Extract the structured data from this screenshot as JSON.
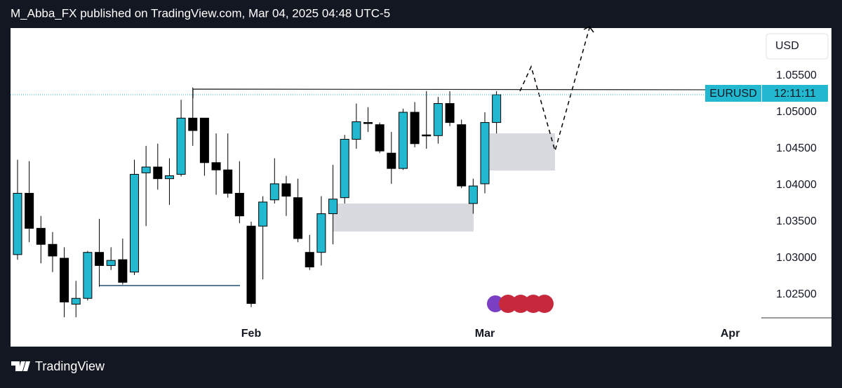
{
  "header": {
    "title": "M_Abba_FX published on TradingView.com, Mar 04, 2025 04:48 UTC-5"
  },
  "footer": {
    "brand": "TradingView"
  },
  "chart_data": {
    "type": "candlestick",
    "currency": "USD",
    "symbol": "EURUSD",
    "countdown": "12:11:11",
    "up_color": "#22b8d0",
    "down_color": "#000000",
    "categories": [
      null,
      null,
      null,
      null,
      null,
      null,
      null,
      null,
      null,
      null,
      null,
      null,
      null,
      null,
      null,
      null,
      null,
      null,
      null,
      null,
      null,
      null,
      null,
      null,
      null,
      null,
      null,
      null,
      null,
      null,
      null,
      null,
      null,
      null,
      null,
      null,
      null,
      null,
      null,
      null,
      null,
      null
    ],
    "open": [
      1.0305,
      1.0389,
      1.0341,
      1.0319,
      1.03,
      1.0237,
      1.0245,
      1.0308,
      1.029,
      1.0298,
      1.0281,
      1.0417,
      1.0425,
      1.0409,
      1.0415,
      1.0492,
      1.0492,
      1.0431,
      1.0421,
      1.0389,
      1.0344,
      1.0344,
      1.038,
      1.0402,
      1.0383,
      1.0308,
      1.0308,
      1.0361,
      1.0383,
      1.0463,
      1.0486,
      1.0483,
      1.0444,
      1.0423,
      1.05,
      1.0469,
      1.0468,
      1.0512,
      1.0483,
      1.0375,
      1.0402,
      1.0486
    ],
    "high": [
      1.0435,
      1.0433,
      1.0358,
      1.0336,
      1.0315,
      1.0269,
      1.031,
      1.0354,
      1.0315,
      1.0327,
      1.0435,
      1.0454,
      1.0457,
      1.0437,
      1.0517,
      1.0534,
      1.0492,
      1.0471,
      1.0471,
      1.0433,
      1.035,
      1.0385,
      1.0437,
      1.0413,
      1.0409,
      1.0332,
      1.0385,
      1.0428,
      1.0469,
      1.0512,
      1.0507,
      1.0486,
      1.0473,
      1.0505,
      1.0514,
      1.0529,
      1.0521,
      1.0529,
      1.049,
      1.0409,
      1.05,
      1.0529
    ],
    "low": [
      1.0298,
      1.0322,
      1.0293,
      1.0281,
      1.0219,
      1.0219,
      1.0242,
      1.0261,
      1.0284,
      1.0264,
      1.0277,
      1.0344,
      1.0394,
      1.0373,
      1.0412,
      1.0454,
      1.0413,
      1.0387,
      1.0383,
      1.0348,
      1.0233,
      1.0271,
      1.0375,
      1.0358,
      1.0322,
      1.0284,
      1.029,
      1.0319,
      1.0375,
      1.045,
      1.0473,
      1.0444,
      1.0402,
      1.0421,
      1.0452,
      1.045,
      1.0457,
      1.0481,
      1.0396,
      1.0361,
      1.0389,
      1.0471
    ],
    "close": [
      1.0389,
      1.0341,
      1.0319,
      1.0303,
      1.024,
      1.0245,
      1.0308,
      1.029,
      1.0297,
      1.0267,
      1.0415,
      1.0425,
      1.0409,
      1.0413,
      1.0492,
      1.0475,
      1.0431,
      1.0421,
      1.0389,
      1.0358,
      1.0238,
      1.0377,
      1.0402,
      1.0385,
      1.0327,
      1.0288,
      1.0361,
      1.0381,
      1.0463,
      1.0487,
      1.0485,
      1.0447,
      1.0423,
      1.05,
      1.0457,
      1.0468,
      1.0512,
      1.0486,
      1.0399,
      1.0399,
      1.0486,
      1.0524
    ],
    "ylim": [
      1.02183,
      1.06154
    ],
    "yticks": [
      {
        "value": 1.025,
        "label": "1.02500"
      },
      {
        "value": 1.03,
        "label": "1.03000"
      },
      {
        "value": 1.035,
        "label": "1.03500"
      },
      {
        "value": 1.04,
        "label": "1.04000"
      },
      {
        "value": 1.045,
        "label": "1.04500"
      },
      {
        "value": 1.05,
        "label": "1.05000"
      },
      {
        "value": 1.055,
        "label": "1.05500"
      }
    ],
    "xticks": [
      {
        "value": 20,
        "label": "Feb"
      },
      {
        "value": 40,
        "label": "Mar"
      },
      {
        "value": 61,
        "label": "Apr"
      }
    ]
  }
}
